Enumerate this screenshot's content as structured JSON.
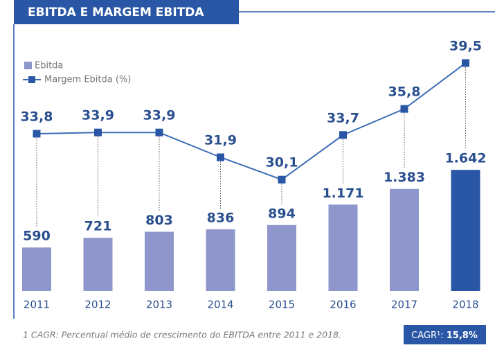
{
  "chart_data": {
    "type": "bar_line",
    "title": "EBITDA E MARGEM EBITDA",
    "categories": [
      "2011",
      "2012",
      "2013",
      "2014",
      "2015",
      "2016",
      "2017",
      "2018"
    ],
    "series": [
      {
        "name": "Ebitda",
        "type": "bar",
        "color": "#8f96cc",
        "colors": [
          "#8f96cc",
          "#8f96cc",
          "#8f96cc",
          "#8f96cc",
          "#8f96cc",
          "#8f96cc",
          "#8f96cc",
          "#2a57a5"
        ],
        "values": [
          590,
          721,
          803,
          836,
          894,
          1171,
          1383,
          1642
        ],
        "value_labels": [
          "590",
          "721",
          "803",
          "836",
          "894",
          "1.171",
          "1.383",
          "1.642"
        ]
      },
      {
        "name": "Margem Ebitda (%)",
        "type": "line",
        "axis": "y2",
        "color": "#3a6db5",
        "marker_color": "#2a57a5",
        "values": [
          33.8,
          33.9,
          33.9,
          31.9,
          30.1,
          33.7,
          35.8,
          39.5
        ],
        "value_labels": [
          "33,8",
          "33,9",
          "33,9",
          "31,9",
          "30,1",
          "33,7",
          "35,8",
          "39,5"
        ]
      }
    ],
    "ylim": [
      0,
      2000
    ],
    "y2lim": [
      20,
      40
    ],
    "legend": "top-left",
    "footnote": "1 CAGR: Percentual médio de crescimento do EBITDA entre 2011 e 2018.",
    "cagr": {
      "label": "CAGR¹:",
      "value": "15,8%"
    }
  }
}
